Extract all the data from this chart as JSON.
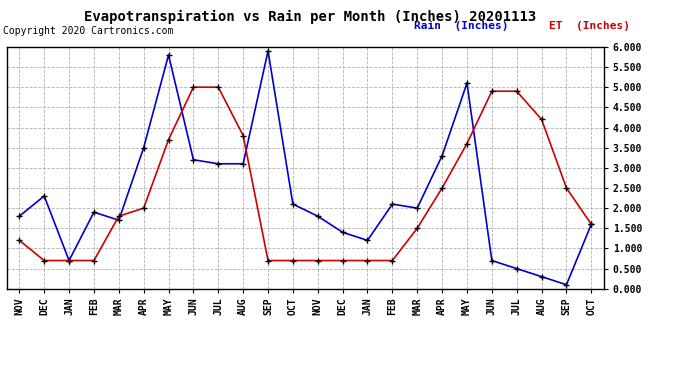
{
  "title": "Evapotranspiration vs Rain per Month (Inches) 20201113",
  "copyright": "Copyright 2020 Cartronics.com",
  "months": [
    "NOV",
    "DEC",
    "JAN",
    "FEB",
    "MAR",
    "APR",
    "MAY",
    "JUN",
    "JUL",
    "AUG",
    "SEP",
    "OCT",
    "NOV",
    "DEC",
    "JAN",
    "FEB",
    "MAR",
    "APR",
    "MAY",
    "JUN",
    "JUL",
    "AUG",
    "SEP",
    "OCT"
  ],
  "rain": [
    1.8,
    2.3,
    0.7,
    1.9,
    1.7,
    3.5,
    5.8,
    3.2,
    3.1,
    3.1,
    5.9,
    2.1,
    1.8,
    1.4,
    1.2,
    2.1,
    2.0,
    3.3,
    5.1,
    0.7,
    0.5,
    0.3,
    0.1,
    1.6
  ],
  "et": [
    1.2,
    0.7,
    0.7,
    0.7,
    1.8,
    2.0,
    3.7,
    5.0,
    5.0,
    3.8,
    0.7,
    0.7,
    0.7,
    0.7,
    0.7,
    0.7,
    1.5,
    2.5,
    3.6,
    4.9,
    4.9,
    4.2,
    2.5,
    1.6
  ],
  "rain_color": "#0000cc",
  "et_color": "#cc0000",
  "bg_color": "#ffffff",
  "grid_color": "#aaaaaa",
  "ylim": [
    0.0,
    6.0
  ],
  "yticks": [
    0.0,
    0.5,
    1.0,
    1.5,
    2.0,
    2.5,
    3.0,
    3.5,
    4.0,
    4.5,
    5.0,
    5.5,
    6.0
  ],
  "legend_rain": "Rain  (Inches)",
  "legend_et": "ET  (Inches)",
  "rain_legend_color": "#0000cc",
  "et_legend_color": "#cc0000",
  "title_fontsize": 10,
  "copyright_fontsize": 7,
  "legend_fontsize": 8,
  "tick_fontsize": 7,
  "border_color": "#000000"
}
